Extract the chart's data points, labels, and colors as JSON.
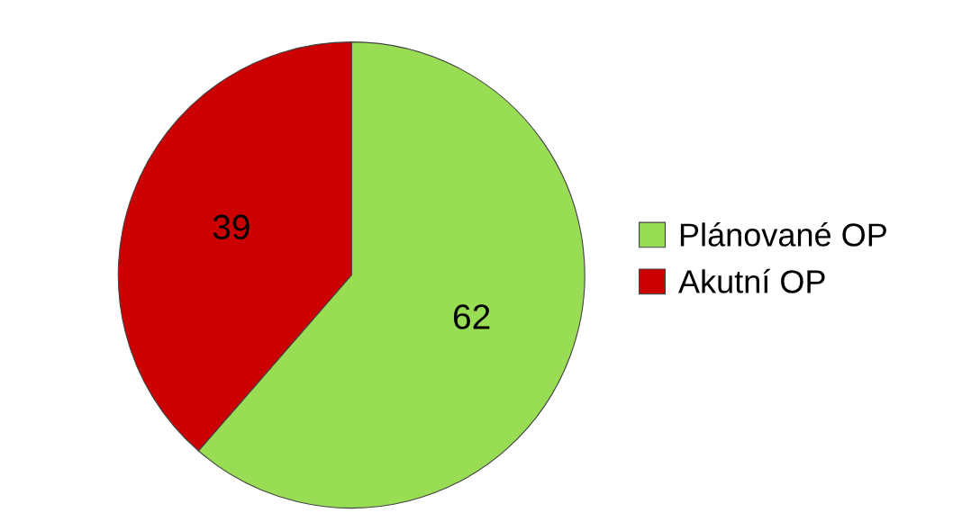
{
  "chart_data": {
    "type": "pie",
    "categories": [
      "Plánované OP",
      "Akutní OP"
    ],
    "values": [
      62,
      39
    ],
    "colors": [
      "#99dd55",
      "#cc0000"
    ],
    "data_labels": true,
    "legend": "right"
  }
}
